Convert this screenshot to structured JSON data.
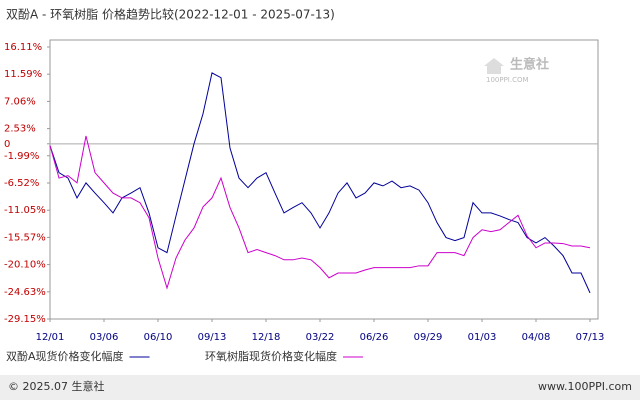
{
  "chart_data": {
    "type": "line",
    "title": "双酚A - 环氧树脂 价格趋势比较(2022-12-01 - 2025-07-13)",
    "watermark": [
      "生意社",
      "100PPI.COM"
    ],
    "footer_left": "© 2025.07 生意社",
    "footer_right": "www.100PPI.com",
    "categories": [
      "12/01",
      null,
      null,
      null,
      null,
      null,
      "03/06",
      null,
      null,
      null,
      null,
      null,
      "06/10",
      null,
      null,
      null,
      null,
      null,
      "09/13",
      null,
      null,
      null,
      null,
      null,
      "12/18",
      null,
      null,
      null,
      null,
      null,
      "03/22",
      null,
      null,
      null,
      null,
      null,
      "06/26",
      null,
      null,
      null,
      null,
      null,
      "09/29",
      null,
      null,
      null,
      null,
      null,
      "01/03",
      null,
      null,
      null,
      null,
      null,
      "04/08",
      null,
      null,
      null,
      null,
      null,
      "07/13"
    ],
    "series": [
      {
        "name": "双酚A现货价格变化幅度",
        "color": "#000099",
        "values": [
          -0.3,
          -4.8,
          -5.7,
          -9,
          -6.5,
          -8.2,
          -9.8,
          -11.5,
          -9,
          -8.2,
          -7.3,
          -11.5,
          -17.3,
          -18.1,
          -12,
          -6,
          0,
          5,
          11.8,
          11,
          -0.7,
          -5.7,
          -7.3,
          -5.7,
          -4.8,
          -8.2,
          -11.5,
          -10.6,
          -9.8,
          -11.5,
          -14,
          -11.5,
          -8.2,
          -6.5,
          -9,
          -8.2,
          -6.5,
          -7,
          -6.2,
          -7.3,
          -7,
          -7.7,
          -9.8,
          -13.1,
          -15.6,
          -16.1,
          -15.6,
          -9.8,
          -11.5,
          -11.5,
          -12,
          -12.6,
          -13.1,
          -15.6,
          -16.5,
          -15.6,
          -17,
          -18.6,
          -21.5,
          -21.5,
          -24.8
        ]
      },
      {
        "name": "环氧树脂现货价格变化幅度",
        "color": "#cc00cc",
        "values": [
          -0.3,
          -5.7,
          -5.3,
          -6.5,
          1.3,
          -4.8,
          -6.5,
          -8.2,
          -9,
          -9,
          -9.8,
          -12.3,
          -19,
          -24,
          -19,
          -16,
          -14,
          -10.5,
          -9,
          -5.7,
          -10.6,
          -14,
          -18.1,
          -17.6,
          -18.1,
          -18.6,
          -19.3,
          -19.3,
          -19,
          -19.3,
          -20.6,
          -22.3,
          -21.5,
          -21.5,
          -21.5,
          -21,
          -20.6,
          -20.6,
          -20.6,
          -20.6,
          -20.6,
          -20.3,
          -20.3,
          -18.1,
          -18.1,
          -18.1,
          -18.6,
          -15.6,
          -14.3,
          -14.6,
          -14.3,
          -13.1,
          -11.9,
          -15.3,
          -17.3,
          -16.5,
          -16.5,
          -16.6,
          -17,
          -17,
          -17.3
        ]
      }
    ],
    "ylim": [
      -29.15,
      16.11
    ],
    "yticks": [
      {
        "value": 16.11,
        "label": "16.11%"
      },
      {
        "value": 11.59,
        "label": "11.59%"
      },
      {
        "value": 7.06,
        "label": "7.06%"
      },
      {
        "value": 2.53,
        "label": "2.53%"
      },
      0,
      {
        "value": -1.99,
        "label": "-1.99%"
      },
      {
        "value": -6.52,
        "label": "-6.52%"
      },
      {
        "value": -11.05,
        "label": "-11.05%"
      },
      {
        "value": -15.57,
        "label": "-15.57%"
      },
      {
        "value": -20.1,
        "label": "-20.10%"
      },
      {
        "value": -24.63,
        "label": "-24.63%"
      },
      {
        "value": -29.15,
        "label": "-29.15%"
      }
    ],
    "grid": false,
    "zero_line": true
  }
}
